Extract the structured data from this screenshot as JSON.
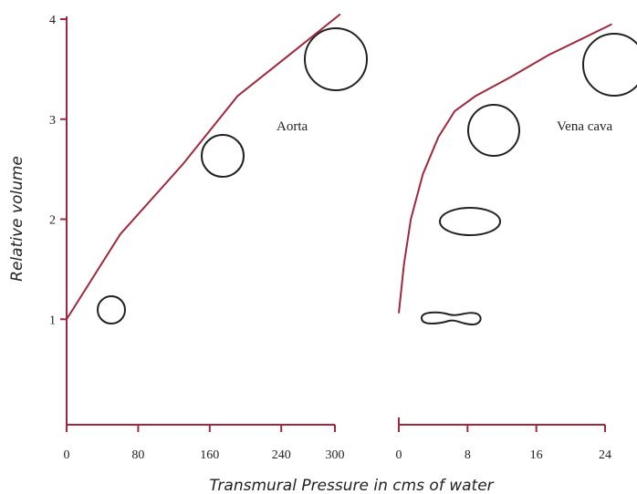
{
  "chart_data": [
    {
      "type": "line",
      "ylabel": "Relative volume",
      "xlabel": "Transmural Pressure in cms of water",
      "xlim": [
        0,
        300
      ],
      "xticks": [
        0,
        80,
        160,
        240,
        300
      ],
      "ylim": [
        0,
        4
      ],
      "yticks": [
        1,
        2,
        3,
        4
      ],
      "series": [
        {
          "name": "Aorta",
          "color": "#a0283c",
          "x": [
            0,
            60,
            130,
            191,
            250,
            306
          ],
          "values": [
            1,
            1.85,
            2.55,
            3.23,
            3.65,
            4.05
          ]
        }
      ]
    },
    {
      "type": "line",
      "xlim": [
        0,
        24
      ],
      "xticks": [
        0,
        8,
        16,
        24
      ],
      "ylim": [
        0,
        4
      ],
      "series": [
        {
          "name": "Vena cava",
          "color": "#a0283c",
          "x": [
            0,
            0.6,
            1.4,
            2.8,
            4.6,
            6.5,
            8.9,
            13,
            17.4,
            24.8
          ],
          "values": [
            1.06,
            1.55,
            2.0,
            2.45,
            2.82,
            3.08,
            3.23,
            3.42,
            3.64,
            3.95
          ]
        }
      ]
    }
  ]
}
